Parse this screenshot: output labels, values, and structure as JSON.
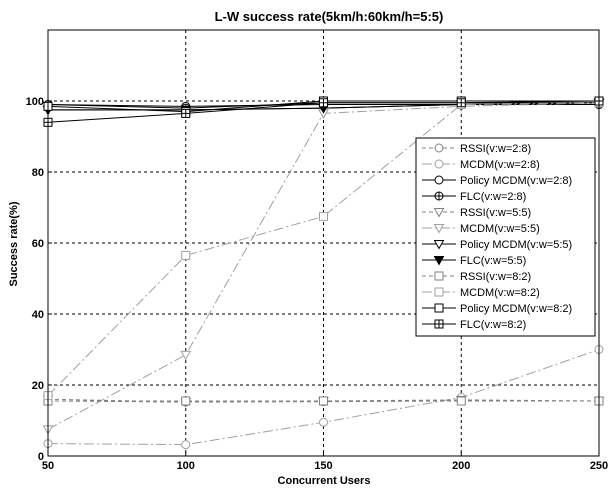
{
  "chart_data": {
    "type": "line",
    "title": "L-W success rate(5km/h:60km/h=5:5)",
    "xlabel": "Concurrent Users",
    "ylabel": "Success rate(%)",
    "xlim": [
      50,
      250
    ],
    "ylim": [
      0,
      120
    ],
    "x": [
      50,
      100,
      150,
      200,
      250
    ],
    "xticks": [
      50,
      100,
      150,
      200,
      250
    ],
    "yticks": [
      0,
      20,
      40,
      60,
      80,
      100
    ],
    "grid": true,
    "legend_position": "right",
    "series": [
      {
        "name": "RSSI(v:w=2:8)",
        "values": [
          15.5,
          15.2,
          15.3,
          15.5,
          15.5
        ],
        "dash": "4,3",
        "marker": "circle",
        "color": "#808080"
      },
      {
        "name": "MCDM(v:w=2:8)",
        "values": [
          3.5,
          3.2,
          9.5,
          16.5,
          30
        ],
        "dash": "10,3,2,3",
        "marker": "circle",
        "color": "#a0a0a0"
      },
      {
        "name": "Policy MCDM(v:w=2:8)",
        "values": [
          99,
          98.5,
          99,
          99,
          99
        ],
        "dash": "",
        "marker": "circle",
        "color": "#000000"
      },
      {
        "name": "FLC(v:w=2:8)",
        "values": [
          99,
          98,
          99.5,
          99.5,
          99.5
        ],
        "dash": "",
        "marker": "circle-plus",
        "color": "#000000"
      },
      {
        "name": "RSSI(v:w=5:5)",
        "values": [
          16,
          15.2,
          15.5,
          15.8,
          15.5
        ],
        "dash": "4,3",
        "marker": "triangle-down",
        "color": "#808080"
      },
      {
        "name": "MCDM(v:w=5:5)",
        "values": [
          7.5,
          28.5,
          96.5,
          98.5,
          99.5
        ],
        "dash": "10,3,2,3",
        "marker": "triangle-down",
        "color": "#a0a0a0"
      },
      {
        "name": "Policy MCDM(v:w=5:5)",
        "values": [
          97.5,
          97.5,
          98,
          99,
          99.5
        ],
        "dash": "",
        "marker": "triangle-down",
        "color": "#000000"
      },
      {
        "name": "FLC(v:w=5:5)",
        "values": [
          97.5,
          97.5,
          98,
          99,
          99.5
        ],
        "dash": "",
        "marker": "triangle-down-filled",
        "color": "#000000"
      },
      {
        "name": "RSSI(v:w=8:2)",
        "values": [
          15.5,
          15.5,
          15.5,
          15.5,
          15.5
        ],
        "dash": "4,3",
        "marker": "square",
        "color": "#808080"
      },
      {
        "name": "MCDM(v:w=8:2)",
        "values": [
          17,
          56.5,
          67.5,
          99,
          99.5
        ],
        "dash": "10,3,2,3",
        "marker": "square",
        "color": "#a0a0a0"
      },
      {
        "name": "Policy MCDM(v:w=8:2)",
        "values": [
          98.5,
          97,
          100,
          100,
          100
        ],
        "dash": "",
        "marker": "square",
        "color": "#000000"
      },
      {
        "name": "FLC(v:w=8:2)",
        "values": [
          94,
          96.5,
          99.5,
          99.5,
          100
        ],
        "dash": "",
        "marker": "square-plus",
        "color": "#000000"
      }
    ]
  }
}
